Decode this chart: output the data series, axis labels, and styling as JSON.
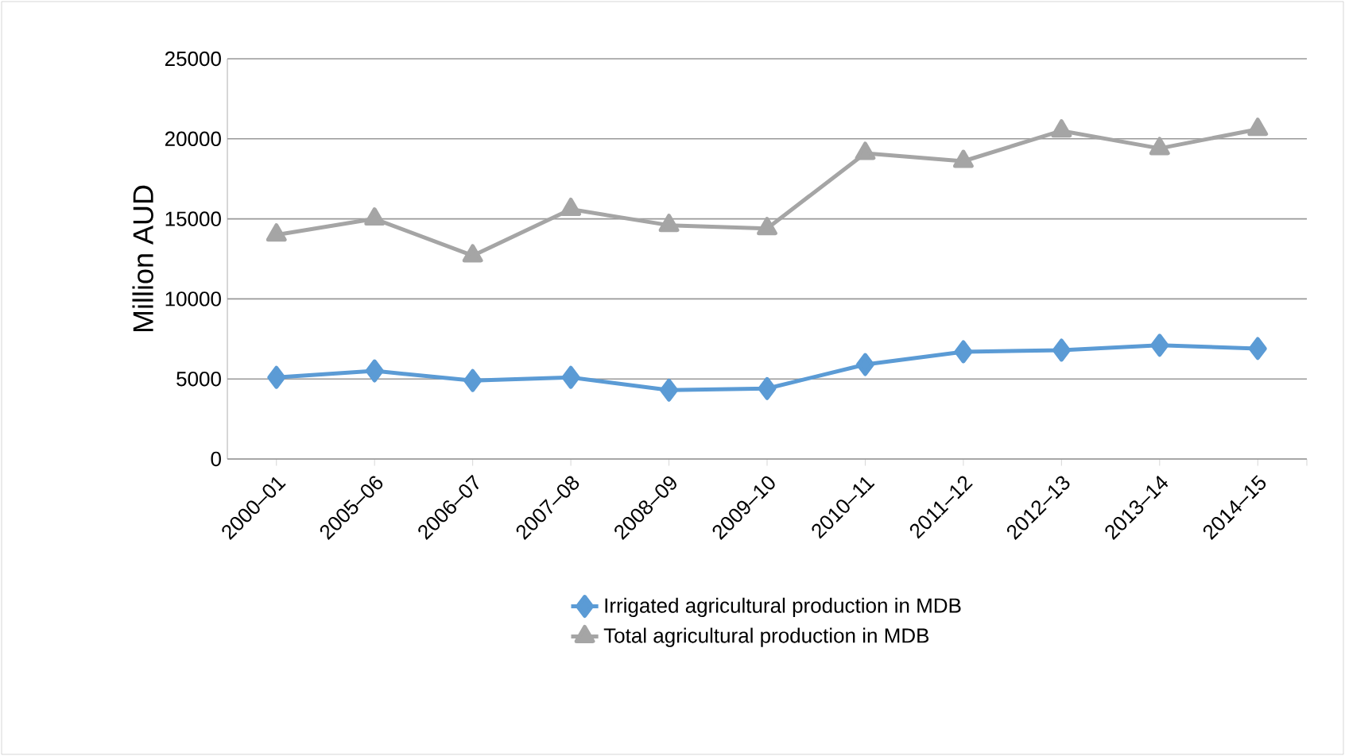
{
  "chart_data": {
    "type": "line",
    "ylabel": "Million AUD",
    "categories": [
      "2000–01",
      "2005–06",
      "2006–07",
      "2007–08",
      "2008–09",
      "2009–10",
      "2010–11",
      "2011–12",
      "2012–13",
      "2013–14",
      "2014–15"
    ],
    "series": [
      {
        "name": "Irrigated agricultural production in MDB",
        "color": "#5b9bd5",
        "marker": "diamond",
        "values": [
          5100,
          5500,
          4900,
          5100,
          4300,
          4400,
          5900,
          6700,
          6800,
          7100,
          6900
        ]
      },
      {
        "name": "Total agricultural production in MDB",
        "color": "#a5a5a5",
        "marker": "triangle",
        "values": [
          14000,
          15000,
          12700,
          15600,
          14600,
          14400,
          19100,
          18600,
          20500,
          19400,
          20600
        ]
      }
    ],
    "ylim": [
      0,
      25000
    ],
    "yticks": [
      0,
      5000,
      10000,
      15000,
      20000,
      25000
    ],
    "grid": "y",
    "legend": "bottom"
  }
}
